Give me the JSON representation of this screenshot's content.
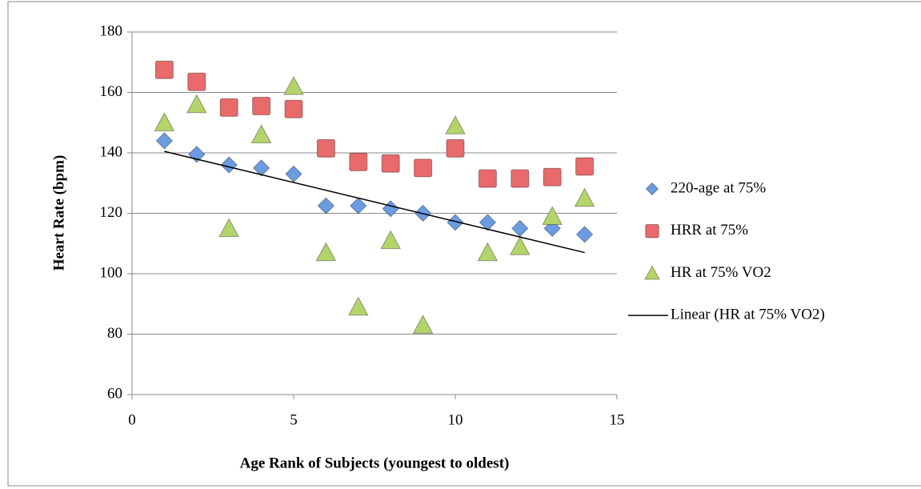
{
  "chart_data": {
    "type": "scatter",
    "x_label": "Age Rank of Subjects (youngest to oldest)",
    "y_label": "Heart Rate (bpm)",
    "xlim": [
      0,
      15
    ],
    "xticks": [
      0,
      5,
      10,
      15
    ],
    "ylim": [
      60,
      180
    ],
    "yticks": [
      60,
      80,
      100,
      120,
      140,
      160,
      180
    ],
    "grid": true,
    "legend": "right",
    "series": [
      {
        "name": "220-age at 75%",
        "color": "#6b9be0",
        "marker": "diamond",
        "x": [
          1,
          2,
          3,
          4,
          5,
          6,
          7,
          8,
          9,
          10,
          11,
          12,
          13,
          14
        ],
        "values": [
          144,
          139.5,
          136,
          135,
          133,
          122.5,
          122.5,
          121.5,
          120,
          117,
          117,
          115,
          115,
          113
        ]
      },
      {
        "name": "HRR at 75%",
        "color": "#e86a6a",
        "marker": "square",
        "x": [
          1,
          2,
          3,
          4,
          5,
          6,
          7,
          8,
          9,
          10,
          11,
          12,
          13,
          14
        ],
        "values": [
          167.5,
          163.5,
          155,
          155.5,
          154.5,
          141.5,
          137,
          136.5,
          135,
          141.5,
          131.5,
          131.5,
          132,
          135.5
        ]
      },
      {
        "name": "HR at 75% VO2",
        "color": "#b3d46a",
        "marker": "triangle",
        "x": [
          1,
          2,
          3,
          4,
          5,
          6,
          7,
          8,
          9,
          10,
          11,
          12,
          13,
          14
        ],
        "values": [
          150,
          156,
          115,
          146,
          162,
          107,
          89,
          111,
          83,
          149,
          107,
          109,
          119,
          125
        ]
      },
      {
        "name": "Linear (HR at 75% VO2)",
        "color": "#000000",
        "marker": "line",
        "x": [
          1,
          14
        ],
        "values": [
          140.5,
          107
        ]
      }
    ]
  }
}
